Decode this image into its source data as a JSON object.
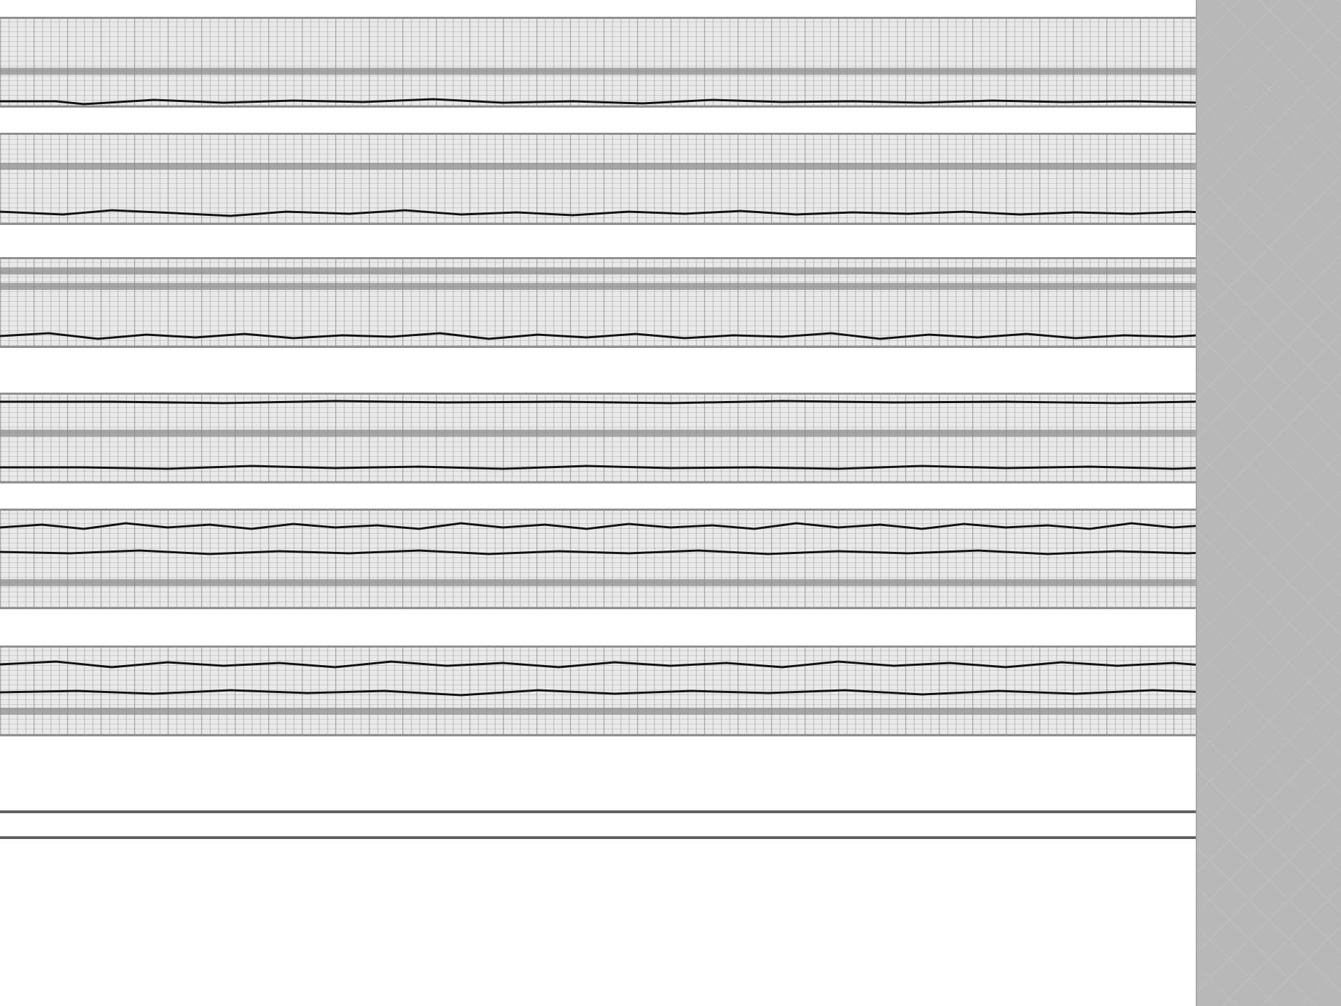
{
  "colors": {
    "background": "#ffffff",
    "strip_fill": "#e9e9e9",
    "strip_border": "#8f8f8f",
    "band": "#828282",
    "trace": "#111111",
    "side_panel": "#b8b8b8"
  },
  "strips": [
    {
      "id": "strip-1"
    },
    {
      "id": "strip-2"
    },
    {
      "id": "strip-3"
    },
    {
      "id": "strip-4"
    },
    {
      "id": "strip-5"
    },
    {
      "id": "strip-6"
    }
  ],
  "bottom_lines": [
    {
      "id": "bottom-line-1"
    },
    {
      "id": "bottom-line-2"
    }
  ],
  "side_panel": {
    "icon": "diamond-pattern"
  }
}
